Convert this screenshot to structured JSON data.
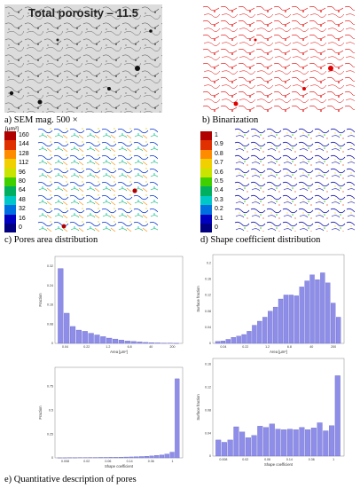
{
  "panels": {
    "a": {
      "caption": "a)   SEM mag. 500 ×",
      "overlay": "Total porosity – 11.5"
    },
    "b": {
      "caption": "b)   Binarization"
    },
    "c": {
      "caption": "c)   Pores area distribution",
      "colorbar_unit": "[µm²]",
      "colorbar_labels": [
        "160",
        "144",
        "128",
        "112",
        "96",
        "80",
        "64",
        "48",
        "32",
        "16",
        "0"
      ],
      "colorbar_colors": [
        "#b00000",
        "#e03000",
        "#ff8c00",
        "#f0d000",
        "#c8e400",
        "#40d000",
        "#00b060",
        "#00c8c8",
        "#0070e0",
        "#0000c0",
        "#000080"
      ]
    },
    "d": {
      "caption": "d)   Shape coefficient distribution",
      "colorbar_labels": [
        "1",
        "0.9",
        "0.8",
        "0.7",
        "0.6",
        "0.5",
        "0.4",
        "0.3",
        "0.2",
        "0.1",
        "0"
      ],
      "colorbar_colors": [
        "#b00000",
        "#e03000",
        "#ff8c00",
        "#f0d000",
        "#c8e400",
        "#40d000",
        "#00b060",
        "#00c8c8",
        "#0070e0",
        "#0000c0",
        "#000080"
      ]
    },
    "e": {
      "caption": "e)   Quantitative description of pores"
    }
  },
  "chart_data": [
    {
      "type": "bar",
      "ylabel": "Fraction",
      "xlabel": "Area [µm²]",
      "x_ticks": [
        "0.04",
        "0.22",
        "1.2",
        "6.8",
        "40",
        "200"
      ],
      "y_ticks": [
        "0",
        "0.08",
        "0.16",
        "0.24",
        "0.32"
      ],
      "ylim": [
        0,
        0.36
      ],
      "values": [
        0.31,
        0.125,
        0.07,
        0.055,
        0.05,
        0.042,
        0.035,
        0.028,
        0.022,
        0.018,
        0.014,
        0.01,
        0.008,
        0.006,
        0.004,
        0.003,
        0.002,
        0.001,
        0.001,
        0.0005
      ]
    },
    {
      "type": "bar",
      "ylabel": "Surface fraction",
      "xlabel": "Area [µm²]",
      "x_ticks": [
        "0.04",
        "0.22",
        "1.2",
        "6.8",
        "40",
        "200"
      ],
      "y_ticks": [
        "0",
        "0.04",
        "0.08",
        "0.12",
        "0.16",
        "0.2"
      ],
      "ylim": [
        0,
        0.22
      ],
      "values": [
        0.005,
        0.006,
        0.01,
        0.015,
        0.018,
        0.022,
        0.03,
        0.045,
        0.055,
        0.065,
        0.08,
        0.09,
        0.11,
        0.12,
        0.12,
        0.118,
        0.14,
        0.155,
        0.17,
        0.158,
        0.175,
        0.15,
        0.1,
        0.065
      ]
    },
    {
      "type": "bar",
      "ylabel": "Fraction",
      "xlabel": "Shape coefficient",
      "x_ticks": [
        "0.008",
        "0.02",
        "0.06",
        "0.14",
        "0.36",
        "1"
      ],
      "y_ticks": [
        "0",
        "0.25",
        "0.5",
        "0.75"
      ],
      "ylim": [
        0,
        0.95
      ],
      "values": [
        0.001,
        0.001,
        0.002,
        0.002,
        0.003,
        0.003,
        0.004,
        0.004,
        0.005,
        0.005,
        0.006,
        0.006,
        0.008,
        0.009,
        0.01,
        0.012,
        0.014,
        0.017,
        0.02,
        0.025,
        0.03,
        0.04,
        0.06,
        0.83
      ]
    },
    {
      "type": "bar",
      "ylabel": "Surface fraction",
      "xlabel": "Shape coefficient",
      "x_ticks": [
        "0.008",
        "0.02",
        "0.06",
        "0.14",
        "0.36",
        "1"
      ],
      "y_ticks": [
        "0",
        "0.04",
        "0.08",
        "0.12",
        "0.16"
      ],
      "ylim": [
        0,
        0.17
      ],
      "values": [
        0.028,
        0.024,
        0.028,
        0.051,
        0.042,
        0.032,
        0.036,
        0.052,
        0.05,
        0.056,
        0.047,
        0.046,
        0.047,
        0.046,
        0.05,
        0.046,
        0.049,
        0.058,
        0.044,
        0.053,
        0.14
      ]
    }
  ]
}
